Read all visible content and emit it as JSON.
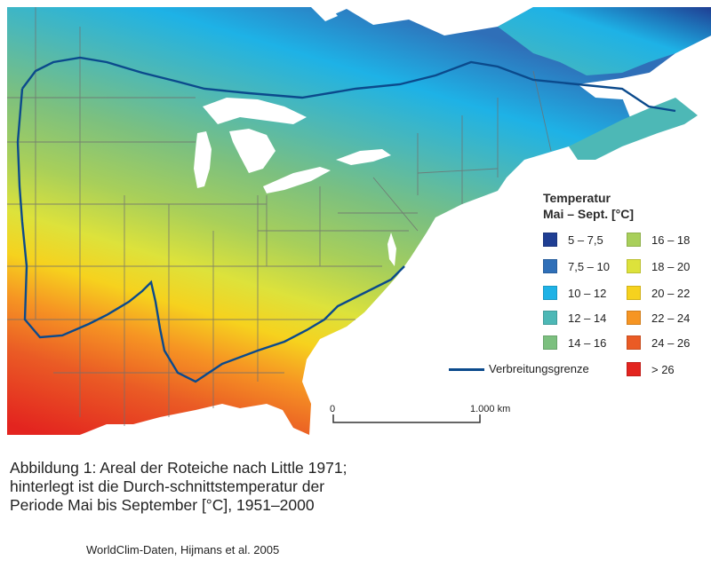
{
  "legend": {
    "title_line1": "Temperatur",
    "title_line2": "Mai – Sept. [°C]",
    "classes": [
      {
        "label": "5 – 7,5",
        "color": "#1f3e93"
      },
      {
        "label": "7,5 – 10",
        "color": "#2f6fb8"
      },
      {
        "label": "10 – 12",
        "color": "#1eb2e6"
      },
      {
        "label": "12 – 14",
        "color": "#4db8b6"
      },
      {
        "label": "14 – 16",
        "color": "#7cc07f"
      },
      {
        "label": "16 – 18",
        "color": "#a8cf5a"
      },
      {
        "label": "18 – 20",
        "color": "#dde23b"
      },
      {
        "label": "20 – 22",
        "color": "#f6d21e"
      },
      {
        "label": "22 – 24",
        "color": "#f69523"
      },
      {
        "label": "24 – 26",
        "color": "#ea5b25"
      },
      {
        "label": "> 26",
        "color": "#e3241f"
      }
    ],
    "range_label": "Verbreitungsgrenze",
    "range_color": "#0b4a8c"
  },
  "scale": {
    "start": "0",
    "end": "1.000 km"
  },
  "caption": "Abbildung 1: Areal der Roteiche nach Little 1971; hinterlegt ist die Durch-schnittstemperatur der Periode Mai bis September [°C], 1951–2000",
  "source": "WorldClim-Daten, Hijmans et al. 2005",
  "colors": {
    "water": "#ffffff",
    "state_borders": "#6f6f6f"
  }
}
